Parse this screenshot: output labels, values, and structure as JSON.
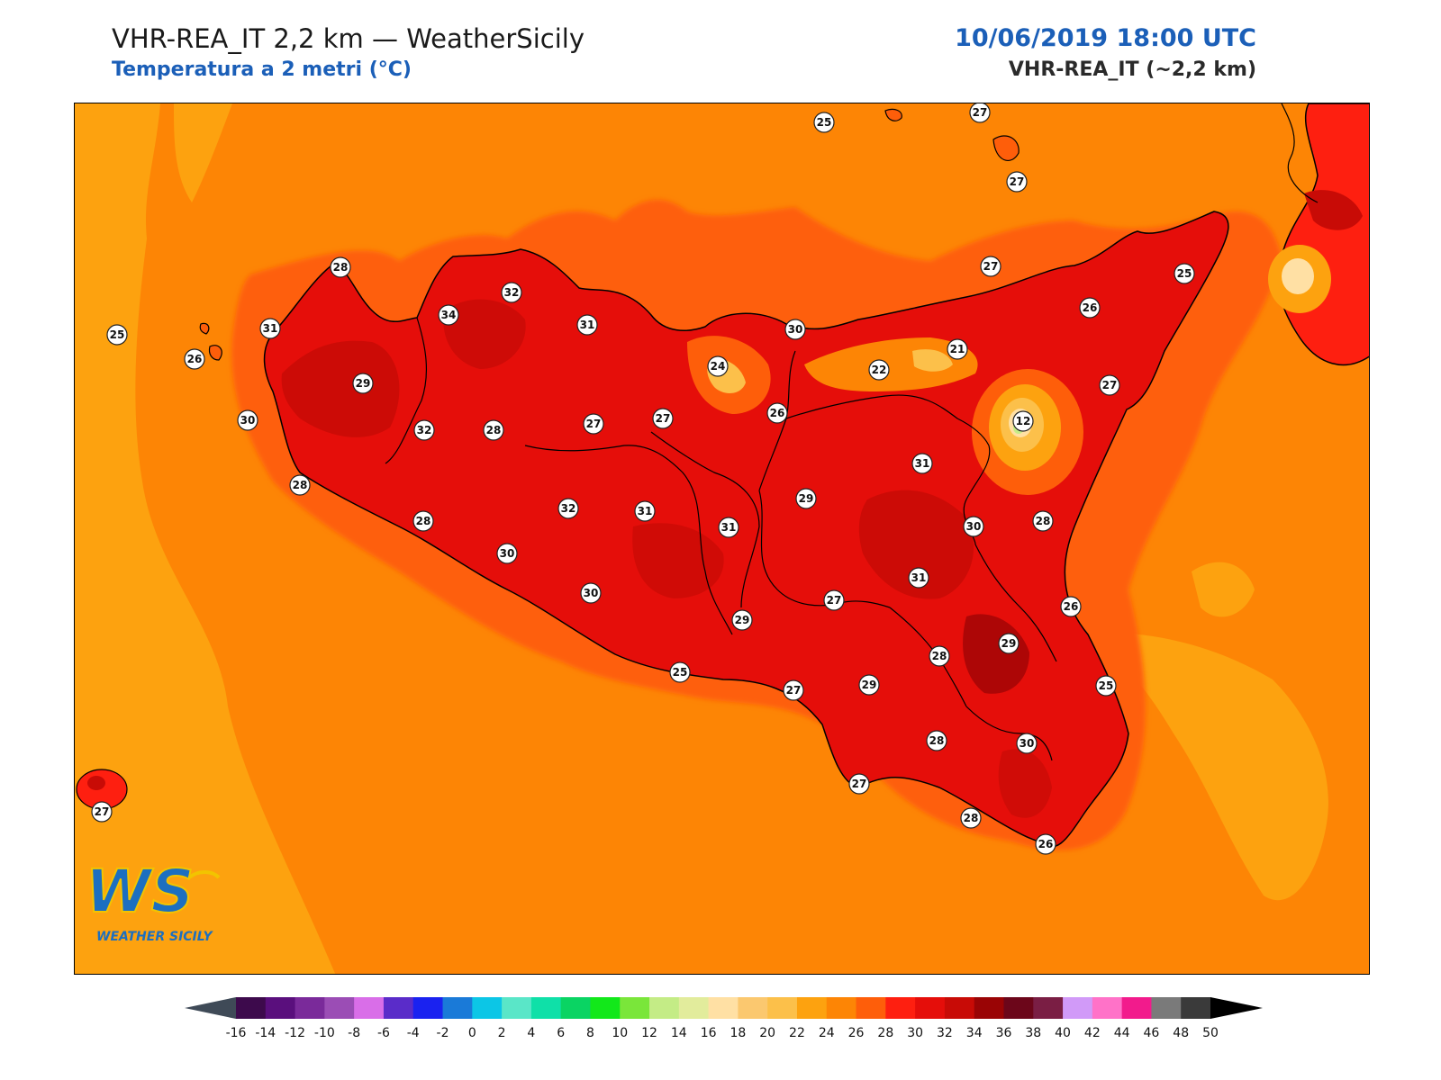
{
  "header": {
    "title": "VHR-REA_IT 2,2 km — WeatherSicily",
    "subtitle": "Temperatura a 2 metri (°C)",
    "datetime": "10/06/2019 18:00 UTC",
    "model": "VHR-REA_IT (~2,2 km)"
  },
  "logo": {
    "initials": "WS",
    "name": "WEATHER SICILY"
  },
  "colorbar": {
    "ticks": [
      "-16",
      "-14",
      "-12",
      "-10",
      "-8",
      "-6",
      "-4",
      "-2",
      "0",
      "2",
      "4",
      "6",
      "8",
      "10",
      "12",
      "14",
      "16",
      "18",
      "20",
      "22",
      "24",
      "26",
      "28",
      "30",
      "32",
      "34",
      "36",
      "38",
      "40",
      "42",
      "44",
      "46",
      "48",
      "50"
    ],
    "colors": [
      "#3d0a4c",
      "#5a0f7d",
      "#7a2a9a",
      "#9b4db5",
      "#d96ee8",
      "#5a2cc9",
      "#1a22f0",
      "#1a7ad8",
      "#0cc6e6",
      "#5ae6c8",
      "#0fe0a8",
      "#0ad463",
      "#12e81a",
      "#7ae63a",
      "#c4ec86",
      "#e2ec9c",
      "#ffe0a4",
      "#fbc86f",
      "#fcc04a",
      "#fda20f",
      "#fd8505",
      "#fe5e0a",
      "#fe1f10",
      "#e50e0a",
      "#c80b06",
      "#9a0405",
      "#6c061a",
      "#7a1e44",
      "#d19af8",
      "#ff72c8",
      "#f21b8c",
      "#7a7a7a",
      "#3a3a3a"
    ],
    "under_color": "#3f4a57",
    "over_color": "#000000"
  },
  "stations": [
    {
      "value": "25"
    },
    {
      "value": "27"
    },
    {
      "value": "27"
    },
    {
      "value": "28"
    },
    {
      "value": "31"
    },
    {
      "value": "25"
    },
    {
      "value": "26"
    },
    {
      "value": "29"
    },
    {
      "value": "30"
    },
    {
      "value": "28"
    },
    {
      "value": "34"
    },
    {
      "value": "32"
    },
    {
      "value": "31"
    },
    {
      "value": "32"
    },
    {
      "value": "28"
    },
    {
      "value": "27"
    },
    {
      "value": "27"
    },
    {
      "value": "24"
    },
    {
      "value": "26"
    },
    {
      "value": "30"
    },
    {
      "value": "27"
    },
    {
      "value": "25"
    },
    {
      "value": "26"
    },
    {
      "value": "21"
    },
    {
      "value": "22"
    },
    {
      "value": "27"
    },
    {
      "value": "12"
    },
    {
      "value": "31"
    },
    {
      "value": "29"
    },
    {
      "value": "32"
    },
    {
      "value": "31"
    },
    {
      "value": "31"
    },
    {
      "value": "28"
    },
    {
      "value": "30"
    },
    {
      "value": "28"
    },
    {
      "value": "30"
    },
    {
      "value": "30"
    },
    {
      "value": "31"
    },
    {
      "value": "29"
    },
    {
      "value": "27"
    },
    {
      "value": "26"
    },
    {
      "value": "29"
    },
    {
      "value": "28"
    },
    {
      "value": "25"
    },
    {
      "value": "25"
    },
    {
      "value": "27"
    },
    {
      "value": "29"
    },
    {
      "value": "28"
    },
    {
      "value": "30"
    },
    {
      "value": "27"
    },
    {
      "value": "28"
    },
    {
      "value": "26"
    },
    {
      "value": "27"
    }
  ]
}
